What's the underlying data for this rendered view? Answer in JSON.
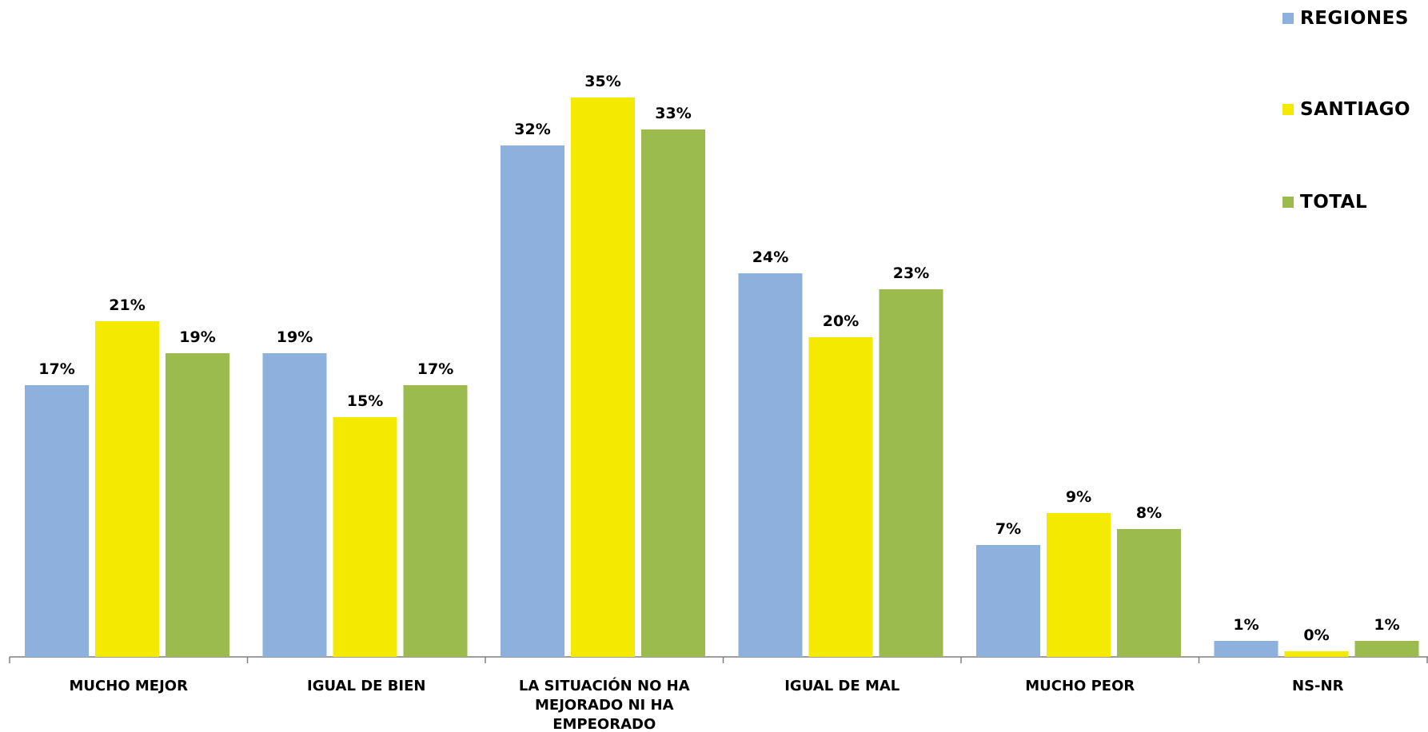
{
  "chart_data": {
    "type": "bar",
    "categories": [
      [
        "MUCHO MEJOR"
      ],
      [
        "IGUAL DE BIEN"
      ],
      [
        "LA SITUACIÓN NO HA",
        "MEJORADO NI HA",
        "EMPEORADO"
      ],
      [
        "IGUAL DE MAL"
      ],
      [
        "MUCHO PEOR"
      ],
      [
        "NS-NR"
      ]
    ],
    "series": [
      {
        "name": "REGIONES",
        "color": "#8db0dd",
        "values": [
          17,
          19,
          32,
          24,
          7,
          1
        ],
        "labels": [
          "17%",
          "19%",
          "32%",
          "24%",
          "7%",
          "1%"
        ]
      },
      {
        "name": "SANTIAGO",
        "color": "#f4e900",
        "values": [
          21,
          15,
          35,
          20,
          9,
          0
        ],
        "labels": [
          "21%",
          "15%",
          "35%",
          "20%",
          "9%",
          "0%"
        ]
      },
      {
        "name": "TOTAL",
        "color": "#9bbb4f",
        "values": [
          19,
          17,
          33,
          23,
          8,
          1
        ],
        "labels": [
          "19%",
          "17%",
          "33%",
          "23%",
          "8%",
          "1%"
        ]
      }
    ],
    "ylim": [
      0,
      35
    ],
    "grid": false,
    "legend_position": "top-right"
  }
}
